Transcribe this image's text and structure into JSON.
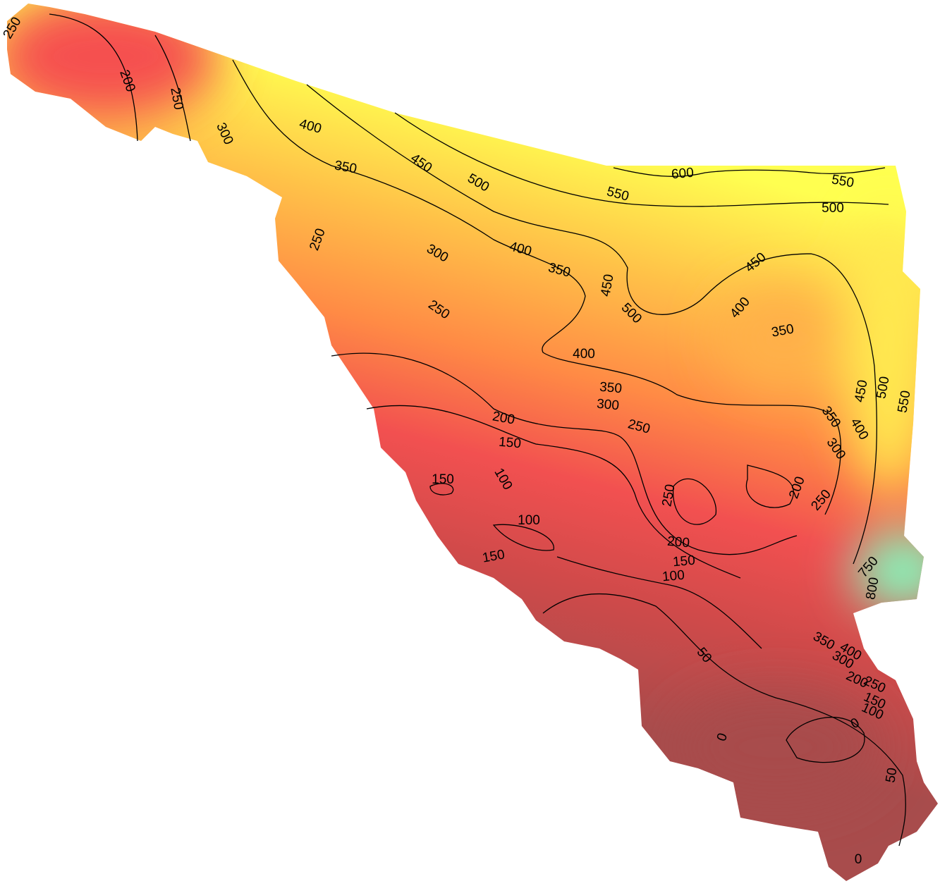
{
  "map": {
    "contour_labels": [
      250,
      200,
      250,
      300,
      400,
      350,
      450,
      500,
      600,
      550,
      550,
      500,
      250,
      300,
      400,
      350,
      450,
      500,
      450,
      400,
      350,
      250,
      400,
      350,
      300,
      250,
      450,
      500,
      550,
      350,
      400,
      300,
      200,
      150,
      150,
      100,
      250,
      200,
      250,
      100,
      200,
      150,
      100,
      150,
      50,
      750,
      800,
      400,
      350,
      300,
      200,
      250,
      150,
      100,
      0,
      0,
      50,
      0
    ]
  }
}
